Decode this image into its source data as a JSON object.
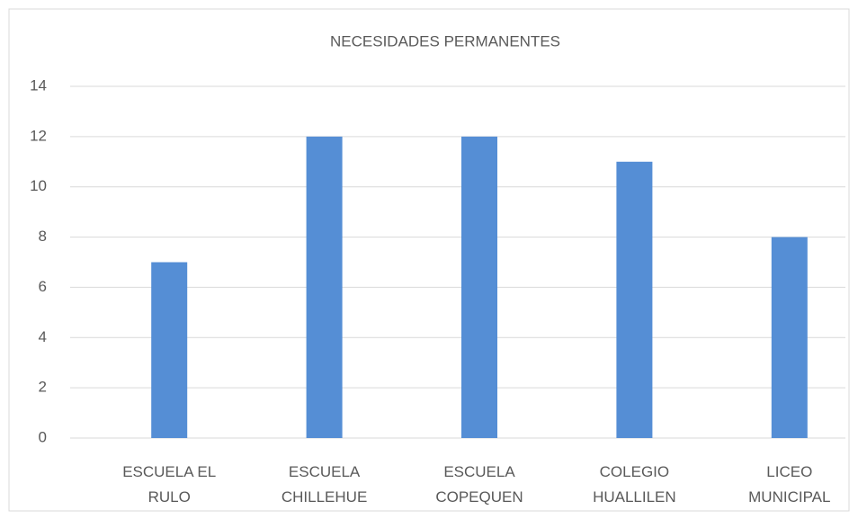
{
  "chart_data": {
    "type": "bar",
    "title": "NECESIDADES PERMANENTES",
    "categories": [
      "ESCUELA EL RULO",
      "ESCUELA CHILLEHUE",
      "ESCUELA COPEQUEN",
      "COLEGIO HUALLILEN",
      "LICEO MUNICIPAL"
    ],
    "values": [
      7,
      12,
      12,
      11,
      8
    ],
    "color": "#558ed5",
    "ylim": [
      0,
      14
    ],
    "yticks": [
      0,
      2,
      4,
      6,
      8,
      10,
      12,
      14
    ],
    "grid": true
  }
}
